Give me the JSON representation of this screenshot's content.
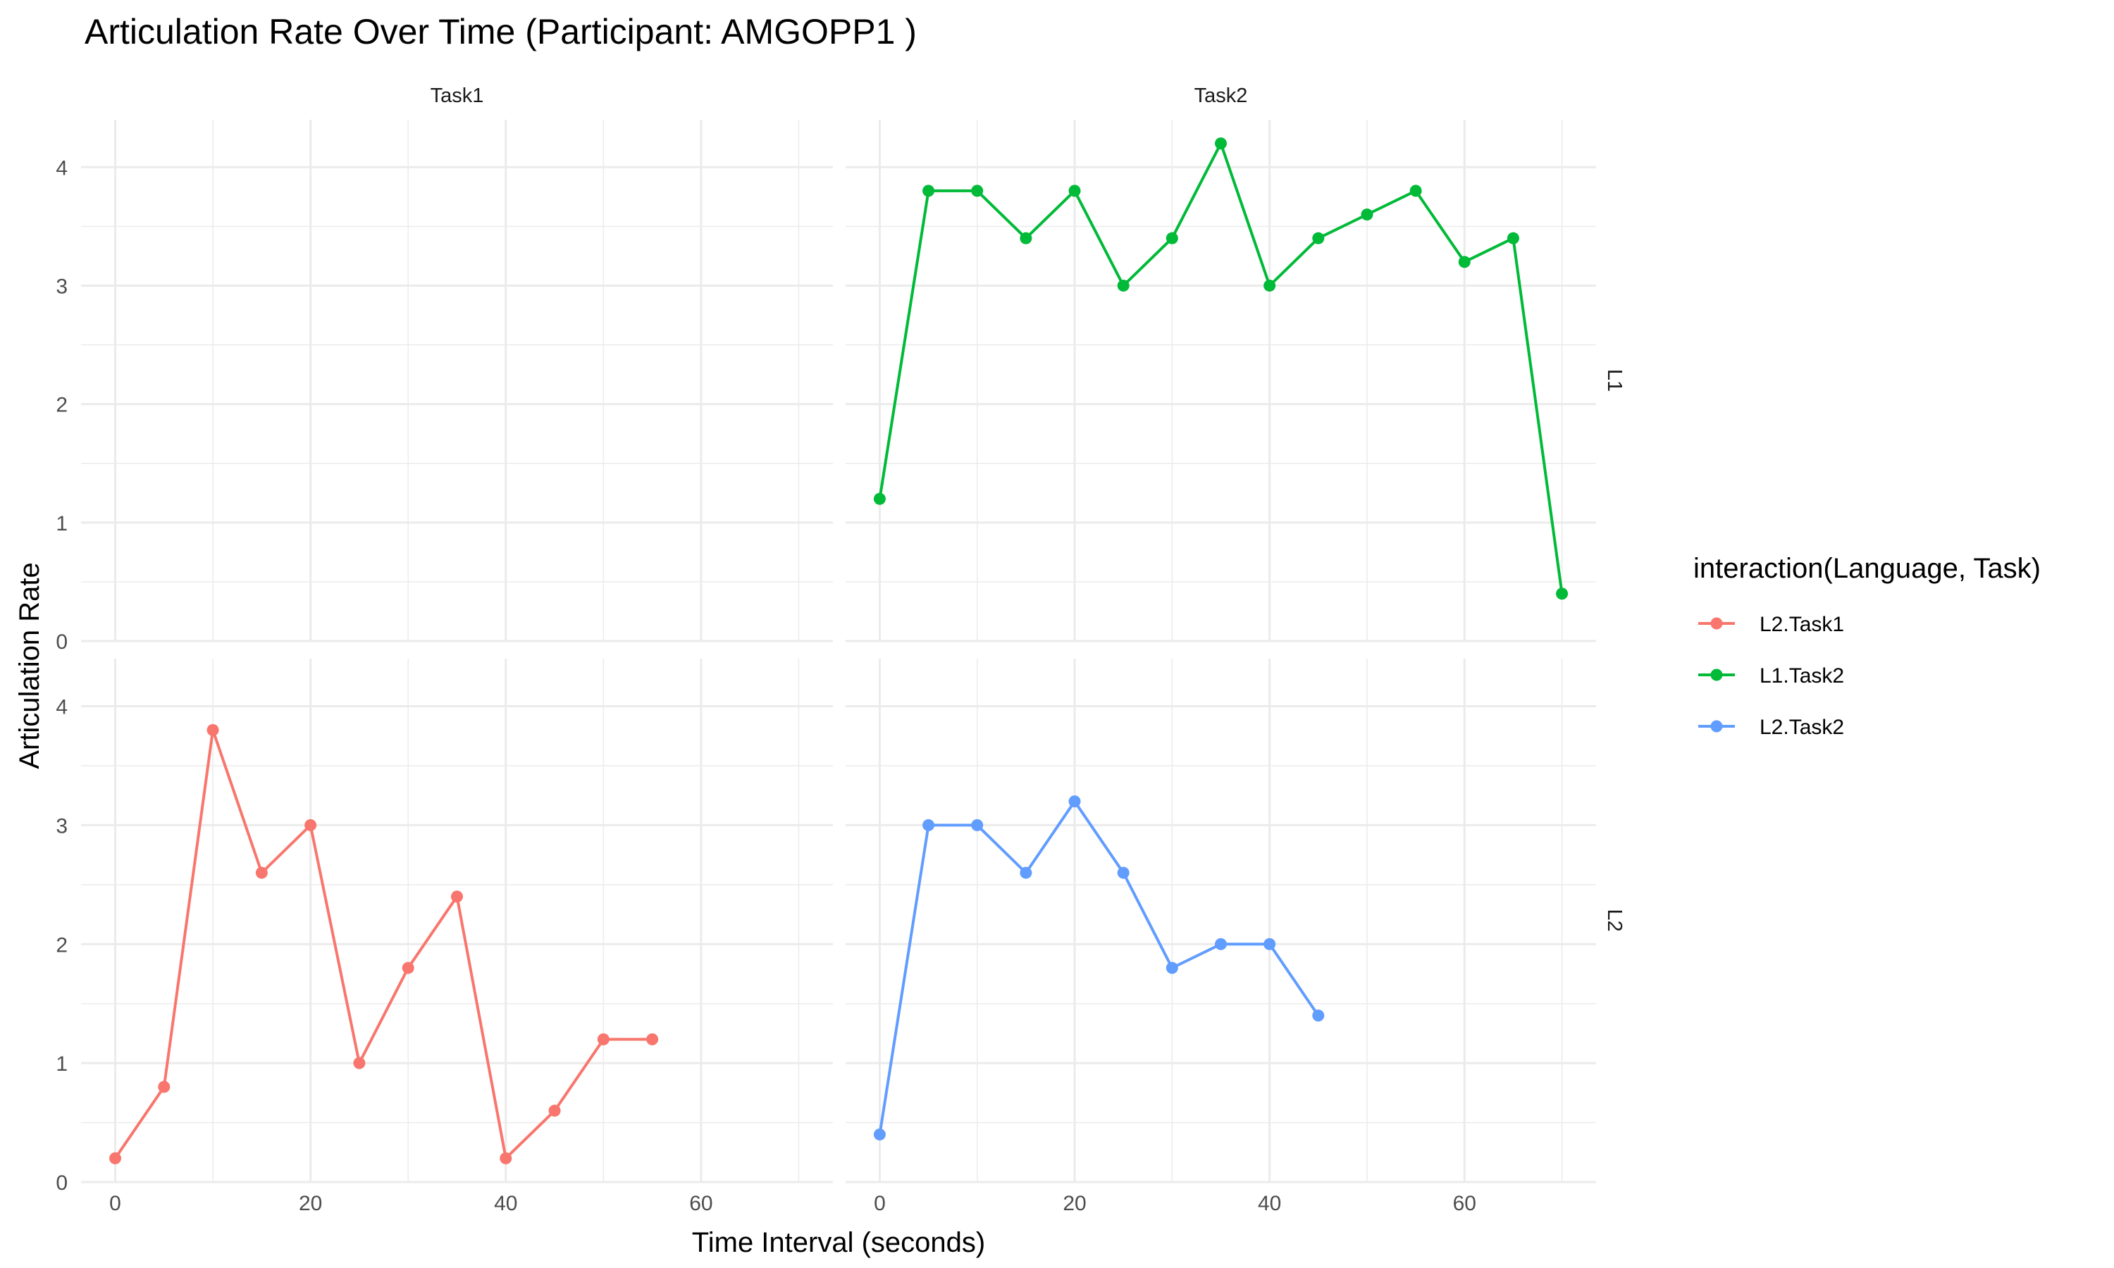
{
  "chart_data": {
    "type": "line",
    "title": "Articulation Rate Over Time (Participant: AMGOPP1 )",
    "xlabel": "Time Interval (seconds)",
    "ylabel": "Articulation Rate",
    "xlim": [
      -3.5,
      73.5
    ],
    "ylim": [
      0,
      4.4
    ],
    "x_ticks": [
      0,
      20,
      40,
      60
    ],
    "y_ticks": [
      0,
      1,
      2,
      3,
      4
    ],
    "columns": [
      "Task1",
      "Task2"
    ],
    "rows": [
      "L1",
      "L2"
    ],
    "legend": {
      "title": "interaction(Language, Task)",
      "position": "right",
      "entries": [
        "L2.Task1",
        "L1.Task2",
        "L2.Task2"
      ]
    },
    "grid": true,
    "series": [
      {
        "name": "L2.Task1",
        "panel": {
          "row": "L2",
          "col": "Task1"
        },
        "color": "#F8766D",
        "x": [
          0,
          5,
          10,
          15,
          20,
          25,
          30,
          35,
          40,
          45,
          50,
          55
        ],
        "y": [
          0.2,
          0.8,
          3.8,
          2.6,
          3.0,
          1.0,
          1.8,
          2.4,
          0.2,
          0.6,
          1.2,
          1.2
        ]
      },
      {
        "name": "L1.Task2",
        "panel": {
          "row": "L1",
          "col": "Task2"
        },
        "color": "#00BA38",
        "x": [
          0,
          5,
          10,
          15,
          20,
          25,
          30,
          35,
          40,
          45,
          50,
          55,
          60,
          65,
          70
        ],
        "y": [
          1.2,
          3.8,
          3.8,
          3.4,
          3.8,
          3.0,
          3.4,
          4.2,
          3.0,
          3.4,
          3.6,
          3.8,
          3.2,
          3.4,
          0.4
        ]
      },
      {
        "name": "L2.Task2",
        "panel": {
          "row": "L2",
          "col": "Task2"
        },
        "color": "#619CFF",
        "x": [
          0,
          5,
          10,
          15,
          20,
          25,
          30,
          35,
          40,
          45
        ],
        "y": [
          0.4,
          3.0,
          3.0,
          2.6,
          3.2,
          2.6,
          1.8,
          2.0,
          2.0,
          1.4
        ]
      }
    ]
  }
}
